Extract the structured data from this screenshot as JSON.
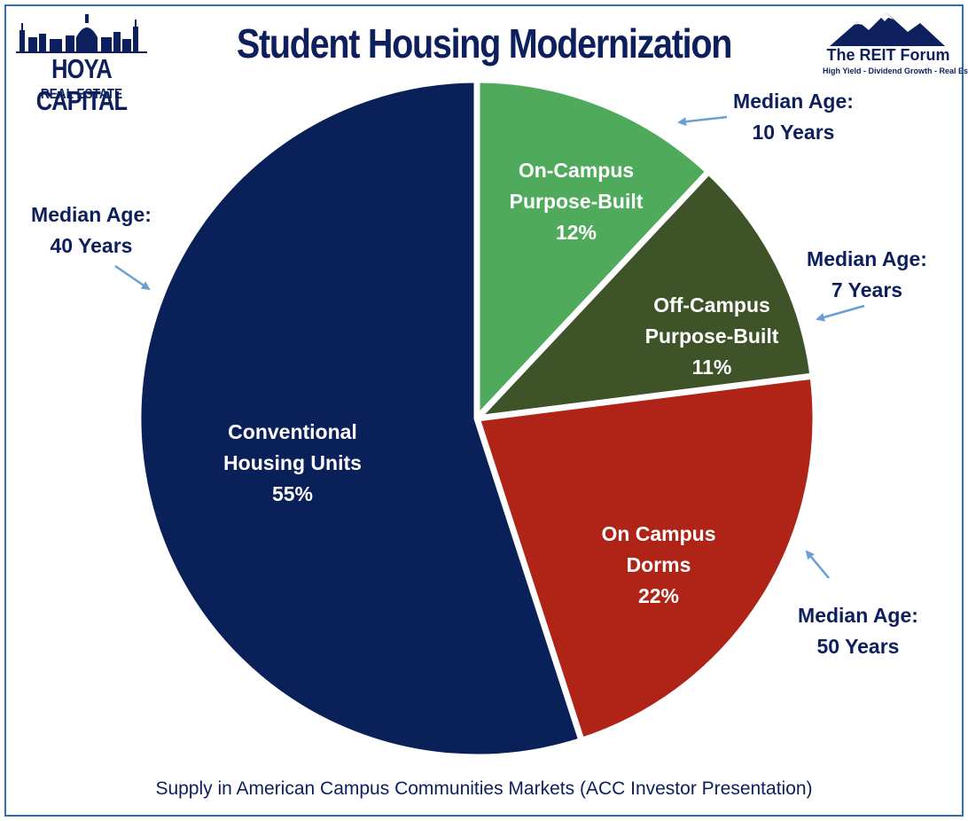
{
  "title": "Student Housing Modernization",
  "logo_left": {
    "name": "HOYA CAPITAL",
    "sub": "REAL ESTATE",
    "icon": "capitol-skyline-icon"
  },
  "logo_right": {
    "name": "The REIT Forum",
    "sub": "High Yield - Dividend Growth - Real Estate",
    "icon": "mountains-icon"
  },
  "footer": "Supply in American Campus Communities Markets (ACC Investor Presentation)",
  "colors": {
    "title": "#0d1f5c",
    "conventional": "#0a2058",
    "on_campus_dorms": "#b02418",
    "off_campus_pb": "#3e5428",
    "on_campus_pb": "#4fab5b",
    "arrow": "#6a9fd4",
    "border": "#2f6fb5"
  },
  "chart_data": {
    "type": "pie",
    "title": "Student Housing Modernization",
    "slices": [
      {
        "name": "On-Campus Purpose-Built",
        "lines": [
          "On-Campus",
          "Purpose-Built",
          "12%"
        ],
        "value": 12,
        "annotation": [
          "Median Age:",
          "10 Years"
        ]
      },
      {
        "name": "Off-Campus Purpose-Built",
        "lines": [
          "Off-Campus",
          "Purpose-Built",
          "11%"
        ],
        "value": 11,
        "annotation": [
          "Median Age:",
          "7 Years"
        ]
      },
      {
        "name": "On Campus Dorms",
        "lines": [
          "On Campus",
          "Dorms",
          "22%"
        ],
        "value": 22,
        "annotation": [
          "Median Age:",
          "50 Years"
        ]
      },
      {
        "name": "Conventional Housing Units",
        "lines": [
          "Conventional",
          "Housing Units",
          "55%"
        ],
        "value": 55,
        "annotation": [
          "Median Age:",
          "40 Years"
        ]
      }
    ]
  }
}
